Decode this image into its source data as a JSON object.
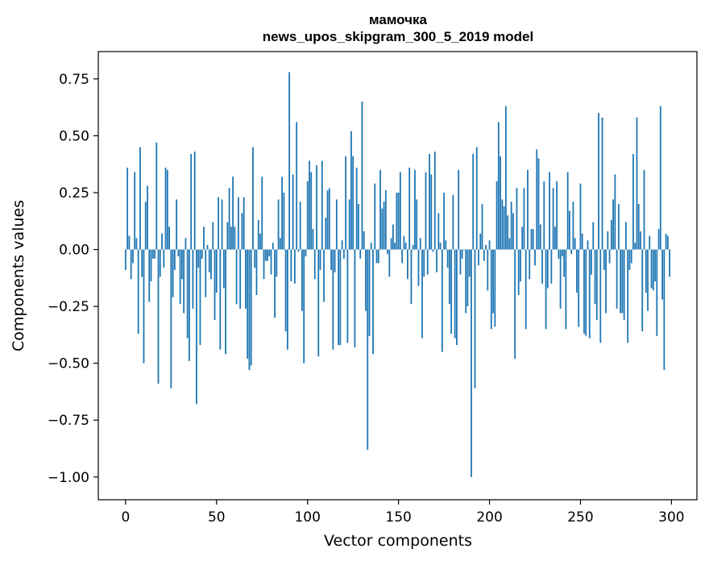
{
  "chart_data": {
    "type": "bar",
    "title": "мамочка",
    "subtitle": "news_upos_skipgram_300_5_2019 model",
    "xlabel": "Vector components",
    "ylabel": "Components values",
    "xlim": [
      -15,
      314
    ],
    "ylim": [
      -1.1,
      0.87
    ],
    "xticks": [
      0,
      50,
      100,
      150,
      200,
      250,
      300
    ],
    "xtick_labels": [
      "0",
      "50",
      "100",
      "150",
      "200",
      "250",
      "300"
    ],
    "yticks": [
      0.75,
      0.5,
      0.25,
      0.0,
      -0.25,
      -0.5,
      -0.75,
      -1.0
    ],
    "ytick_labels": [
      "0.75",
      "0.50",
      "0.25",
      "0.00",
      "−0.25",
      "−0.50",
      "−0.75",
      "−1.00"
    ],
    "bar_color": "#1f77b4",
    "values": [
      -0.09,
      0.36,
      0.06,
      -0.13,
      -0.06,
      0.34,
      0.05,
      -0.37,
      0.45,
      -0.12,
      -0.5,
      0.21,
      0.28,
      -0.23,
      -0.14,
      -0.04,
      -0.04,
      0.47,
      -0.59,
      -0.12,
      0.07,
      -0.08,
      0.36,
      0.35,
      0.1,
      -0.61,
      -0.21,
      -0.09,
      0.22,
      -0.03,
      -0.24,
      -0.13,
      -0.28,
      0.05,
      -0.39,
      -0.49,
      0.42,
      -0.26,
      0.43,
      -0.68,
      -0.08,
      -0.42,
      -0.04,
      0.1,
      -0.21,
      0.02,
      -0.1,
      -0.13,
      0.12,
      -0.31,
      -0.19,
      0.23,
      -0.44,
      0.22,
      -0.17,
      -0.46,
      0.12,
      0.27,
      0.1,
      0.32,
      0.1,
      -0.24,
      0.23,
      -0.26,
      0.16,
      0.23,
      -0.26,
      -0.48,
      -0.53,
      -0.51,
      0.45,
      -0.08,
      -0.2,
      0.13,
      0.07,
      0.32,
      -0.13,
      -0.05,
      -0.05,
      -0.03,
      -0.11,
      0.03,
      -0.3,
      -0.12,
      0.22,
      0.05,
      0.32,
      0.25,
      -0.36,
      -0.44,
      0.78,
      -0.14,
      0.33,
      -0.15,
      0.56,
      -0.01,
      0.21,
      -0.27,
      -0.5,
      -0.03,
      0.3,
      0.39,
      0.34,
      0.09,
      -0.13,
      0.37,
      -0.47,
      -0.09,
      0.39,
      -0.23,
      0.14,
      0.26,
      0.27,
      -0.09,
      -0.44,
      -0.1,
      0.22,
      -0.42,
      -0.42,
      0.04,
      -0.04,
      0.41,
      -0.41,
      0.22,
      0.52,
      0.41,
      -0.43,
      0.36,
      0.2,
      -0.04,
      0.65,
      0.08,
      -0.27,
      -0.88,
      -0.38,
      0.03,
      -0.46,
      0.29,
      -0.06,
      -0.06,
      0.35,
      0.18,
      0.21,
      0.26,
      -0.02,
      -0.12,
      0.05,
      0.11,
      0.03,
      0.25,
      0.25,
      0.34,
      -0.06,
      0.06,
      0.03,
      -0.13,
      0.36,
      -0.24,
      0.02,
      0.35,
      0.22,
      -0.16,
      0.05,
      -0.39,
      -0.12,
      0.34,
      -0.11,
      0.42,
      0.33,
      -0.01,
      0.43,
      -0.1,
      0.16,
      0.03,
      -0.45,
      0.25,
      0.04,
      -0.08,
      -0.24,
      -0.37
    ]
  },
  "chart_data_tail": {
    "values": [
      0.24,
      -0.39,
      -0.42,
      0.35,
      -0.11,
      -0.04,
      0.0,
      -0.28,
      -0.25,
      -0.12,
      -1.0,
      0.42,
      -0.61,
      0.45,
      -0.07,
      0.07,
      0.2,
      -0.05,
      0.02,
      -0.18,
      0.04,
      -0.35,
      -0.28,
      -0.34,
      0.3,
      0.56,
      0.41,
      0.22,
      0.19,
      0.63,
      0.15,
      0.05,
      0.21,
      0.16,
      -0.48,
      0.27,
      -0.2,
      -0.14,
      0.1,
      0.27,
      -0.35,
      0.35,
      -0.13,
      0.09,
      0.09,
      -0.07,
      0.44,
      0.4,
      0.11,
      -0.15,
      0.3,
      -0.35,
      -0.17,
      0.34,
      -0.15,
      0.27,
      0.1,
      0.3,
      -0.04,
      -0.26,
      -0.03,
      -0.12,
      -0.35,
      0.34,
      0.17,
      -0.02,
      0.21,
      0.05,
      -0.19,
      -0.34,
      0.29,
      0.07,
      -0.37,
      -0.38,
      0.04,
      -0.39,
      -0.11,
      0.12,
      -0.24,
      -0.31,
      0.6,
      -0.41,
      0.58,
      -0.09,
      -0.28,
      0.08,
      -0.06,
      0.13,
      0.22,
      0.33,
      -0.26,
      0.2,
      -0.28,
      -0.28,
      -0.31,
      0.12,
      -0.41,
      -0.09,
      -0.06,
      0.42,
      0.03,
      0.58,
      0.2,
      0.08,
      -0.36,
      0.35,
      -0.19,
      -0.27,
      0.06,
      -0.17,
      -0.18,
      -0.14,
      -0.38,
      0.09,
      0.63,
      -0.22,
      -0.53,
      0.07,
      0.06,
      -0.12
    ]
  }
}
